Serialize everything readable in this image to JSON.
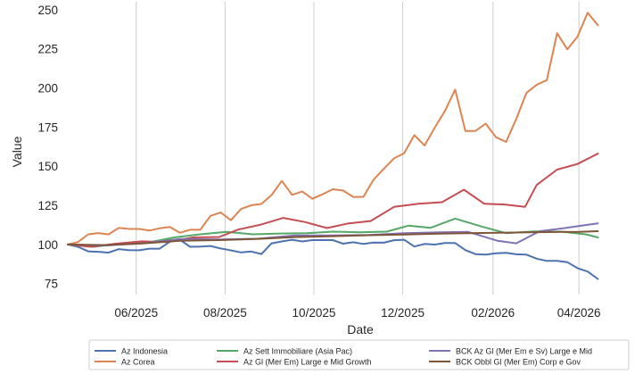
{
  "chart_data": {
    "type": "line",
    "xlabel": "Date",
    "ylabel": "Value",
    "grid": true,
    "legend_position": "bottom",
    "x_start": "2025-04-15",
    "x_end": "2026-05-15",
    "x_ticks": [
      {
        "date": "2025-06-01",
        "label": "06/2025"
      },
      {
        "date": "2025-08-01",
        "label": "08/2025"
      },
      {
        "date": "2025-10-01",
        "label": "10/2025"
      },
      {
        "date": "2025-12-01",
        "label": "12/2025"
      },
      {
        "date": "2026-02-01",
        "label": "02/2026"
      },
      {
        "date": "2026-04-01",
        "label": "04/2026"
      }
    ],
    "y_ticks": [
      75,
      100,
      125,
      150,
      175,
      200,
      225,
      250
    ],
    "ylim": [
      68,
      255
    ],
    "series": [
      {
        "name": "Az Indonesia",
        "color": "#4c72b0",
        "points": [
          [
            "2025-04-15",
            100
          ],
          [
            "2025-04-22",
            98.5
          ],
          [
            "2025-04-29",
            95.6
          ],
          [
            "2025-05-06",
            95.3
          ],
          [
            "2025-05-13",
            94.8
          ],
          [
            "2025-05-20",
            97
          ],
          [
            "2025-05-27",
            96.4
          ],
          [
            "2025-06-03",
            96.3
          ],
          [
            "2025-06-10",
            97.3
          ],
          [
            "2025-06-17",
            97.3
          ],
          [
            "2025-06-24",
            101.7
          ],
          [
            "2025-07-01",
            103
          ],
          [
            "2025-07-08",
            98.5
          ],
          [
            "2025-07-15",
            98.7
          ],
          [
            "2025-07-22",
            99
          ],
          [
            "2025-07-29",
            97.4
          ],
          [
            "2025-08-05",
            96.2
          ],
          [
            "2025-08-12",
            94.9
          ],
          [
            "2025-08-19",
            95.5
          ],
          [
            "2025-08-26",
            93.9
          ],
          [
            "2025-09-02",
            100.7
          ],
          [
            "2025-09-09",
            101.9
          ],
          [
            "2025-09-16",
            103
          ],
          [
            "2025-09-23",
            101.9
          ],
          [
            "2025-09-30",
            102.8
          ],
          [
            "2025-10-07",
            102.8
          ],
          [
            "2025-10-14",
            102.8
          ],
          [
            "2025-10-21",
            100.5
          ],
          [
            "2025-10-28",
            101.4
          ],
          [
            "2025-11-04",
            100.3
          ],
          [
            "2025-11-11",
            101.2
          ],
          [
            "2025-11-18",
            101.1
          ],
          [
            "2025-11-25",
            102.7
          ],
          [
            "2025-12-02",
            103
          ],
          [
            "2025-12-09",
            98.7
          ],
          [
            "2025-12-16",
            100.3
          ],
          [
            "2025-12-23",
            99.9
          ],
          [
            "2025-12-30",
            100.9
          ],
          [
            "2026-01-06",
            100.9
          ],
          [
            "2026-01-13",
            96.4
          ],
          [
            "2026-01-20",
            93.8
          ],
          [
            "2026-01-27",
            93.5
          ],
          [
            "2026-02-03",
            94.4
          ],
          [
            "2026-02-10",
            94.6
          ],
          [
            "2026-02-17",
            93.7
          ],
          [
            "2026-02-24",
            93.5
          ],
          [
            "2026-03-03",
            90.9
          ],
          [
            "2026-03-10",
            89.5
          ],
          [
            "2026-03-17",
            89.5
          ],
          [
            "2026-03-24",
            88.7
          ],
          [
            "2026-03-31",
            84.9
          ],
          [
            "2026-04-07",
            82.7
          ],
          [
            "2026-04-14",
            78
          ]
        ]
      },
      {
        "name": "Az Corea",
        "color": "#dd8452",
        "points": [
          [
            "2025-04-15",
            100
          ],
          [
            "2025-04-22",
            101.5
          ],
          [
            "2025-04-29",
            106.5
          ],
          [
            "2025-05-06",
            107.3
          ],
          [
            "2025-05-13",
            106.4
          ],
          [
            "2025-05-20",
            110.6
          ],
          [
            "2025-05-27",
            109.9
          ],
          [
            "2025-06-03",
            109.9
          ],
          [
            "2025-06-10",
            108.9
          ],
          [
            "2025-06-17",
            110.3
          ],
          [
            "2025-06-24",
            111.2
          ],
          [
            "2025-07-01",
            107.5
          ],
          [
            "2025-07-08",
            109.4
          ],
          [
            "2025-07-15",
            109.4
          ],
          [
            "2025-07-22",
            118.3
          ],
          [
            "2025-07-29",
            120.4
          ],
          [
            "2025-08-05",
            115.5
          ],
          [
            "2025-08-12",
            122.7
          ],
          [
            "2025-08-19",
            125
          ],
          [
            "2025-08-26",
            125.9
          ],
          [
            "2025-09-02",
            131.6
          ],
          [
            "2025-09-09",
            140.6
          ],
          [
            "2025-09-16",
            131.7
          ],
          [
            "2025-09-23",
            133.8
          ],
          [
            "2025-09-30",
            129.2
          ],
          [
            "2025-10-07",
            132.1
          ],
          [
            "2025-10-14",
            135.3
          ],
          [
            "2025-10-21",
            134.5
          ],
          [
            "2025-10-28",
            130.3
          ],
          [
            "2025-11-04",
            130.4
          ],
          [
            "2025-11-11",
            141.4
          ],
          [
            "2025-11-18",
            148.3
          ],
          [
            "2025-11-25",
            155
          ],
          [
            "2025-12-02",
            158.3
          ],
          [
            "2025-12-09",
            169.8
          ],
          [
            "2025-12-16",
            163.2
          ],
          [
            "2025-12-23",
            174.6
          ],
          [
            "2025-12-30",
            185.3
          ],
          [
            "2026-01-06",
            198.9
          ],
          [
            "2026-01-13",
            172.5
          ],
          [
            "2026-01-20",
            172.5
          ],
          [
            "2026-01-27",
            177.2
          ],
          [
            "2026-02-03",
            168.5
          ],
          [
            "2026-02-10",
            165.5
          ],
          [
            "2026-02-17",
            180.2
          ],
          [
            "2026-02-24",
            196.9
          ],
          [
            "2026-03-03",
            202
          ],
          [
            "2026-03-10",
            205
          ],
          [
            "2026-03-17",
            235
          ],
          [
            "2026-03-24",
            224.6
          ],
          [
            "2026-03-31",
            232.7
          ],
          [
            "2026-04-07",
            248
          ],
          [
            "2026-04-14",
            240
          ]
        ]
      },
      {
        "name": "Az Sett Immobiliare (Asia Pac)",
        "color": "#55a868",
        "points": [
          [
            "2025-04-15",
            100
          ],
          [
            "2025-05-03",
            98.5
          ],
          [
            "2025-05-20",
            100.5
          ],
          [
            "2025-06-08",
            101
          ],
          [
            "2025-06-27",
            104.5
          ],
          [
            "2025-07-15",
            106.5
          ],
          [
            "2025-08-02",
            108
          ],
          [
            "2025-08-20",
            106.5
          ],
          [
            "2025-09-08",
            107
          ],
          [
            "2025-09-26",
            107.2
          ],
          [
            "2025-10-14",
            108.2
          ],
          [
            "2025-11-01",
            107.8
          ],
          [
            "2025-11-20",
            108.2
          ],
          [
            "2025-12-05",
            112
          ],
          [
            "2025-12-20",
            110.6
          ],
          [
            "2026-01-06",
            116.5
          ],
          [
            "2026-01-24",
            111.5
          ],
          [
            "2026-02-10",
            107.2
          ],
          [
            "2026-03-01",
            108.3
          ],
          [
            "2026-03-20",
            108.2
          ],
          [
            "2026-04-06",
            106.4
          ],
          [
            "2026-04-14",
            104.5
          ]
        ]
      },
      {
        "name": "Az Gl (Mer Em) Large e Mid Growth",
        "color": "#c44e52",
        "points": [
          [
            "2025-04-15",
            100
          ],
          [
            "2025-05-01",
            98.5
          ],
          [
            "2025-05-18",
            100.5
          ],
          [
            "2025-06-05",
            102
          ],
          [
            "2025-06-22",
            101.5
          ],
          [
            "2025-07-10",
            104.5
          ],
          [
            "2025-07-28",
            104.8
          ],
          [
            "2025-08-10",
            109.5
          ],
          [
            "2025-08-25",
            112.5
          ],
          [
            "2025-09-10",
            117
          ],
          [
            "2025-09-25",
            114.3
          ],
          [
            "2025-10-10",
            110.5
          ],
          [
            "2025-10-25",
            113.5
          ],
          [
            "2025-11-09",
            115
          ],
          [
            "2025-11-25",
            124
          ],
          [
            "2025-12-12",
            126
          ],
          [
            "2025-12-28",
            127
          ],
          [
            "2026-01-12",
            135
          ],
          [
            "2026-01-26",
            126
          ],
          [
            "2026-02-09",
            125.5
          ],
          [
            "2026-02-23",
            124
          ],
          [
            "2026-03-03",
            138
          ],
          [
            "2026-03-17",
            147.8
          ],
          [
            "2026-03-31",
            151.4
          ],
          [
            "2026-04-14",
            158
          ]
        ]
      },
      {
        "name": "BCK Az Gl (Mer Em e Sv) Large e Mid",
        "color": "#8172b3",
        "points": [
          [
            "2025-04-15",
            100
          ],
          [
            "2025-05-10",
            99.3
          ],
          [
            "2025-06-05",
            100.7
          ],
          [
            "2025-07-01",
            103.5
          ],
          [
            "2025-07-28",
            103.2
          ],
          [
            "2025-08-24",
            103.7
          ],
          [
            "2025-09-18",
            105.8
          ],
          [
            "2025-10-14",
            105.8
          ],
          [
            "2025-11-08",
            106
          ],
          [
            "2025-12-02",
            107.2
          ],
          [
            "2025-12-26",
            107.8
          ],
          [
            "2026-01-15",
            108
          ],
          [
            "2026-02-04",
            102.4
          ],
          [
            "2026-02-17",
            100.7
          ],
          [
            "2026-03-05",
            108.5
          ],
          [
            "2026-03-20",
            110.2
          ],
          [
            "2026-04-03",
            112
          ],
          [
            "2026-04-14",
            113.5
          ]
        ]
      },
      {
        "name": "BCK Obbl Gl (Mer Em) Corp e Gov",
        "color": "#7f5539",
        "points": [
          [
            "2025-04-15",
            100
          ],
          [
            "2025-05-10",
            99.6
          ],
          [
            "2025-06-05",
            100.6
          ],
          [
            "2025-07-01",
            102.4
          ],
          [
            "2025-07-28",
            102.8
          ],
          [
            "2025-08-24",
            103.6
          ],
          [
            "2025-09-18",
            104.7
          ],
          [
            "2025-10-14",
            105.3
          ],
          [
            "2025-11-08",
            105.9
          ],
          [
            "2025-12-02",
            106.3
          ],
          [
            "2025-12-26",
            106.9
          ],
          [
            "2026-01-20",
            107.3
          ],
          [
            "2026-02-15",
            107.6
          ],
          [
            "2026-03-10",
            107.9
          ],
          [
            "2026-04-01",
            108.1
          ],
          [
            "2026-04-14",
            108.5
          ]
        ]
      }
    ]
  }
}
